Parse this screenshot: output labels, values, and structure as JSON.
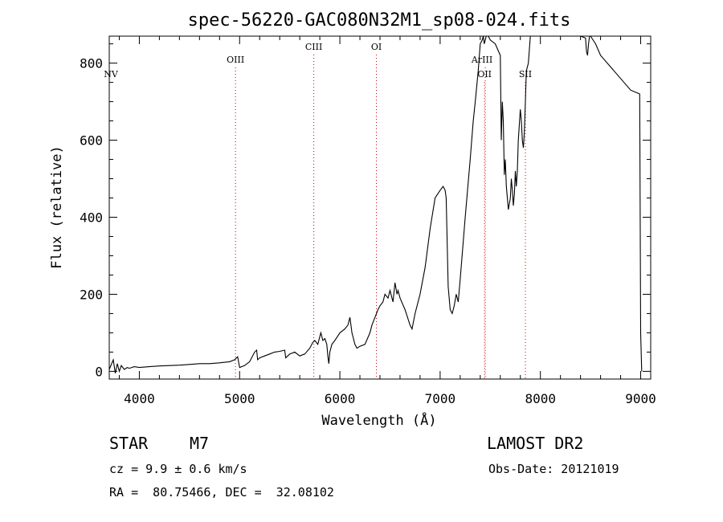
{
  "chart_data": {
    "type": "line",
    "title": "spec-56220-GAC080N32M1_sp08-024.fits",
    "xlabel": "Wavelength (Å)",
    "ylabel": "Flux (relative)",
    "xlim": [
      3700,
      9100
    ],
    "ylim": [
      -20,
      870
    ],
    "xticks": [
      4000,
      5000,
      6000,
      7000,
      8000,
      9000
    ],
    "yticks": [
      0,
      200,
      400,
      600,
      800
    ],
    "line_color": "#000000",
    "marker_color": "#cc0000",
    "grid": false,
    "series": [
      {
        "x": [
          3700,
          3740,
          3760,
          3780,
          3800,
          3820,
          3850,
          3880,
          3900,
          3950,
          4000,
          4100,
          4200,
          4300,
          4400,
          4500,
          4600,
          4700,
          4800,
          4900,
          4950,
          4980,
          5000,
          5050,
          5100,
          5150,
          5170,
          5180,
          5200,
          5250,
          5300,
          5350,
          5400,
          5450,
          5460,
          5480,
          5500,
          5550,
          5600,
          5650,
          5700,
          5730,
          5750,
          5780,
          5800,
          5810,
          5830,
          5850,
          5870,
          5880,
          5890,
          5900,
          5920,
          5950,
          6000,
          6050,
          6080,
          6100,
          6120,
          6150,
          6170,
          6200,
          6250,
          6300,
          6320,
          6350,
          6380,
          6400,
          6430,
          6450,
          6480,
          6500,
          6530,
          6550,
          6570,
          6580,
          6600,
          6650,
          6700,
          6720,
          6750,
          6800,
          6850,
          6900,
          6950,
          7000,
          7030,
          7050,
          7060,
          7080,
          7100,
          7120,
          7140,
          7160,
          7180,
          7200,
          7250,
          7300,
          7330,
          7350,
          7380,
          7400,
          7420,
          7430,
          7440,
          7450,
          7460,
          7480,
          7500,
          7550,
          7600,
          7610,
          7620,
          7630,
          7640,
          7650,
          7660,
          7680,
          7700,
          7710,
          7720,
          7730,
          7740,
          7750,
          7760,
          7770,
          7780,
          7800,
          7810,
          7820,
          7830,
          7840,
          7850,
          7860,
          7880,
          7900,
          7950,
          8000,
          8050,
          8100,
          8150,
          8200,
          8250,
          8300,
          8350,
          8400,
          8450,
          8460,
          8470,
          8480,
          8490,
          8500,
          8550,
          8600,
          8700,
          8800,
          8900,
          8990,
          9000,
          9010
        ],
        "y": [
          5,
          30,
          -5,
          20,
          0,
          15,
          5,
          10,
          8,
          12,
          10,
          12,
          14,
          15,
          16,
          18,
          20,
          20,
          22,
          25,
          30,
          38,
          10,
          15,
          25,
          50,
          55,
          30,
          35,
          40,
          45,
          50,
          52,
          55,
          35,
          40,
          45,
          50,
          40,
          45,
          60,
          75,
          80,
          70,
          90,
          100,
          80,
          85,
          70,
          40,
          20,
          50,
          70,
          80,
          100,
          110,
          120,
          140,
          100,
          70,
          60,
          65,
          70,
          100,
          120,
          140,
          160,
          170,
          180,
          200,
          190,
          210,
          180,
          230,
          200,
          210,
          190,
          160,
          120,
          110,
          150,
          200,
          270,
          370,
          450,
          470,
          480,
          470,
          450,
          220,
          160,
          150,
          170,
          200,
          180,
          240,
          400,
          550,
          650,
          700,
          780,
          850,
          860,
          870,
          850,
          860,
          880,
          870,
          860,
          850,
          820,
          600,
          700,
          650,
          510,
          550,
          480,
          420,
          450,
          500,
          470,
          430,
          460,
          520,
          480,
          520,
          600,
          680,
          650,
          600,
          580,
          620,
          700,
          780,
          800,
          870,
          870,
          870,
          870,
          870,
          870,
          870,
          870,
          870,
          870,
          870,
          865,
          830,
          820,
          850,
          870,
          870,
          850,
          820,
          790,
          760,
          730,
          720,
          100,
          0
        ]
      }
    ],
    "emission_lines": [
      {
        "label": "NV",
        "x": 3700
      },
      {
        "label": "OIII",
        "x": 4959
      },
      {
        "label": "CIII",
        "x": 5740
      },
      {
        "label": "OI",
        "x": 6364
      },
      {
        "label": "ArIII",
        "x": 7450
      },
      {
        "label": "OII",
        "x": 7443
      },
      {
        "label": "SII",
        "x": 7850
      }
    ]
  },
  "info": {
    "object_class": "STAR",
    "subclass": "M7",
    "survey": "LAMOST DR2",
    "cz": "cz = 9.9 ± 0.6 km/s",
    "obs_date": "Obs-Date: 20121019",
    "coords": "RA =  80.75466, DEC =  32.08102"
  }
}
